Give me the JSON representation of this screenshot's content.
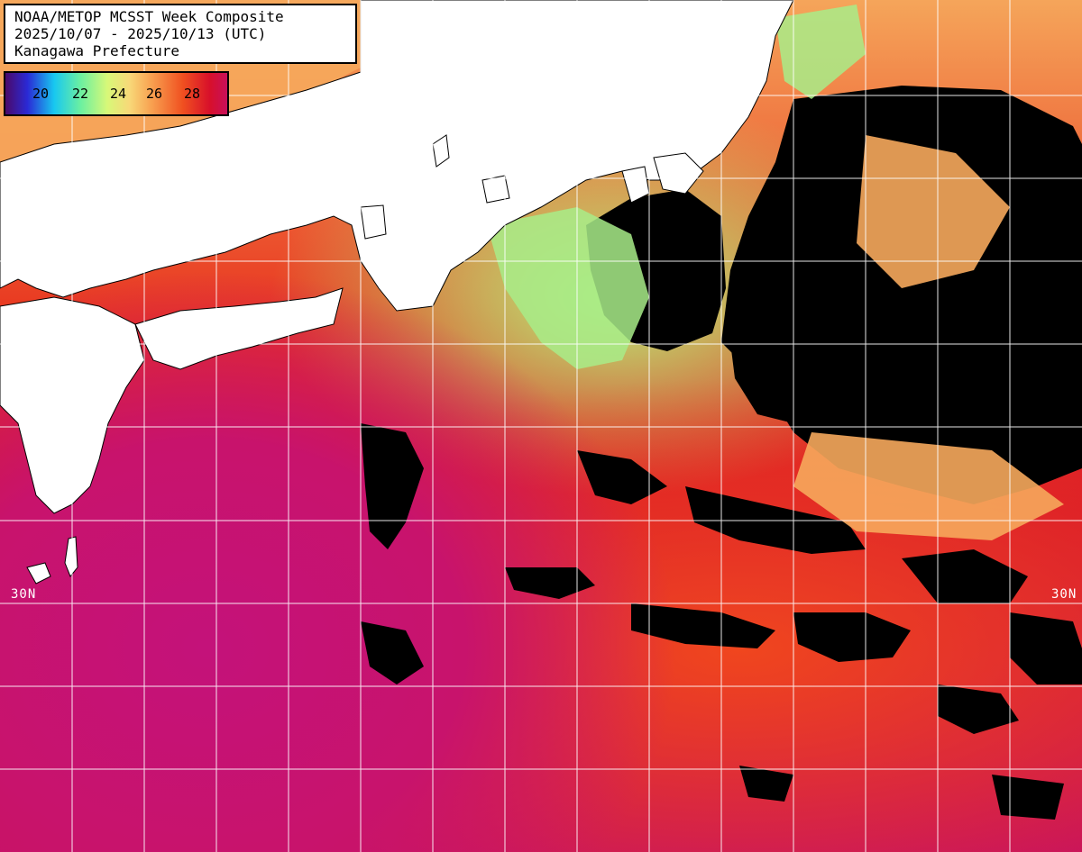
{
  "legend": {
    "line1": "NOAA/METOP MCSST Week Composite",
    "line2": "2025/10/07 - 2025/10/13 (UTC)",
    "line3": "Kanagawa Prefecture"
  },
  "color_scale": {
    "ticks": [
      "20",
      "22",
      "24",
      "26",
      "28"
    ],
    "unit": ""
  },
  "grid": {
    "lat_labels": [
      "30N",
      "30N"
    ]
  },
  "colors": {
    "land": "#ffffff",
    "cloud": "#000000",
    "warm_sst": "#d8102a",
    "hot_sst": "#c8127a",
    "cool_sst": "#b7ef7a",
    "grid_line": "#ffffff"
  }
}
